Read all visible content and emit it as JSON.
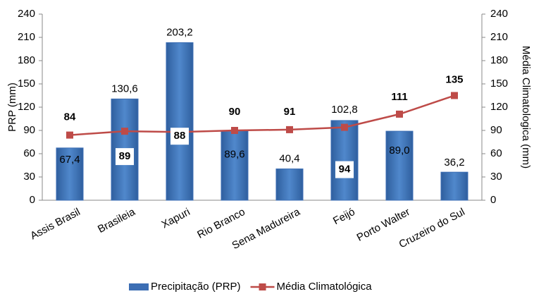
{
  "chart_data": {
    "type": "bar",
    "categories": [
      "Assis Brasil",
      "Brasileia",
      "Xapuri",
      "Rio Branco",
      "Sena Madureira",
      "Feijó",
      "Porto Walter",
      "Cruzeiro do Sul"
    ],
    "series": [
      {
        "name": "Precipitação (PRP)",
        "type": "bar",
        "color": "#3c6eb4",
        "values": [
          67.4,
          130.6,
          203.2,
          89.6,
          40.4,
          102.8,
          89.0,
          36.2
        ],
        "value_labels": [
          "67,4",
          "130,6",
          "203,2",
          "89,6",
          "40,4",
          "102,8",
          "89,0",
          "36,2"
        ]
      },
      {
        "name": "Média Climatológica",
        "type": "line",
        "color": "#be4b48",
        "axis": "y2",
        "values": [
          84,
          89,
          88,
          90,
          91,
          94,
          111,
          135
        ]
      }
    ],
    "ylabel": "PRP (mm)",
    "y2label": "Média Climatologica (mm)",
    "ylim": [
      0,
      240
    ],
    "yticks": [
      0,
      30,
      60,
      90,
      120,
      150,
      180,
      210,
      240
    ],
    "y2lim": [
      0,
      240
    ],
    "y2ticks": [
      0,
      30,
      60,
      90,
      120,
      150,
      180,
      210,
      240
    ],
    "legend": "bottom"
  }
}
